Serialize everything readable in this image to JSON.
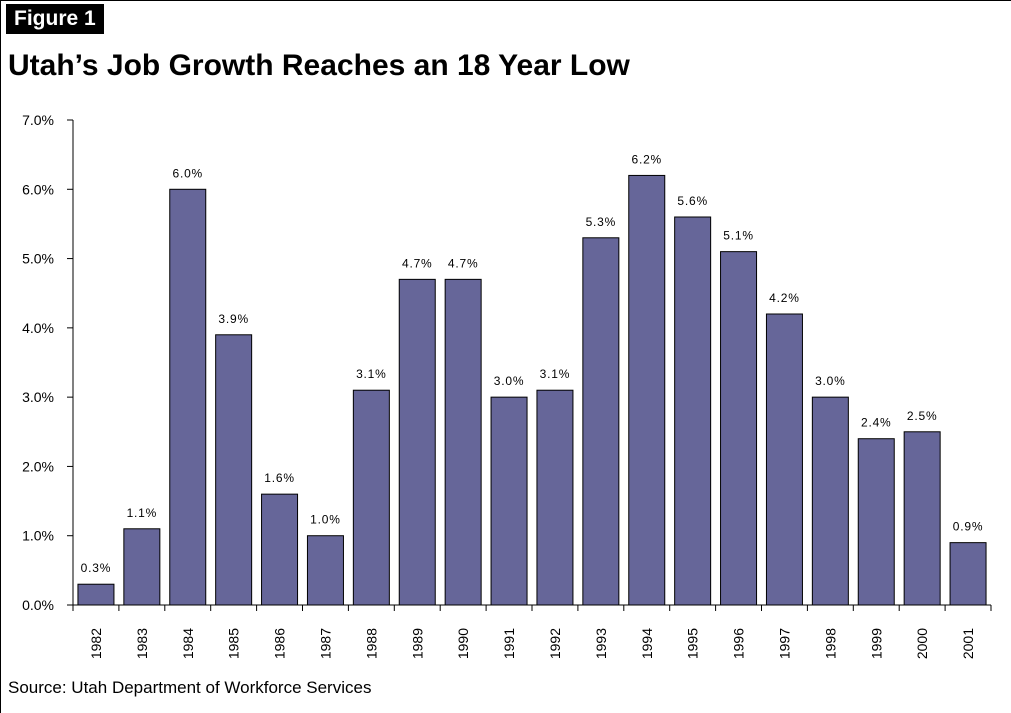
{
  "figure_label": "Figure 1",
  "source": "Source: Utah Department of Workforce Services",
  "colors": {
    "bar_fill": "#666699",
    "bar_stroke": "#000000",
    "axis": "#000000"
  },
  "chart_data": {
    "type": "bar",
    "title": "Utah’s Job Growth Reaches an 18 Year Low",
    "xlabel": "",
    "ylabel": "",
    "categories": [
      "1982",
      "1983",
      "1984",
      "1985",
      "1986",
      "1987",
      "1988",
      "1989",
      "1990",
      "1991",
      "1992",
      "1993",
      "1994",
      "1995",
      "1996",
      "1997",
      "1998",
      "1999",
      "2000",
      "2001"
    ],
    "values": [
      0.3,
      1.1,
      6.0,
      3.9,
      1.6,
      1.0,
      3.1,
      4.7,
      4.7,
      3.0,
      3.1,
      5.3,
      6.2,
      5.6,
      5.1,
      4.2,
      3.0,
      2.4,
      2.5,
      0.9
    ],
    "data_labels": [
      "0.3%",
      "1.1%",
      "6.0%",
      "3.9%",
      "1.6%",
      "1.0%",
      "3.1%",
      "4.7%",
      "4.7%",
      "3.0%",
      "3.1%",
      "5.3%",
      "6.2%",
      "5.6%",
      "5.1%",
      "4.2%",
      "3.0%",
      "2.4%",
      "2.5%",
      "0.9%"
    ],
    "ylim": [
      0,
      7
    ],
    "yticks": [
      0,
      1,
      2,
      3,
      4,
      5,
      6,
      7
    ],
    "ytick_labels": [
      "0.0%",
      "1.0%",
      "2.0%",
      "3.0%",
      "4.0%",
      "5.0%",
      "6.0%",
      "7.0%"
    ],
    "grid": false,
    "legend": "none"
  }
}
